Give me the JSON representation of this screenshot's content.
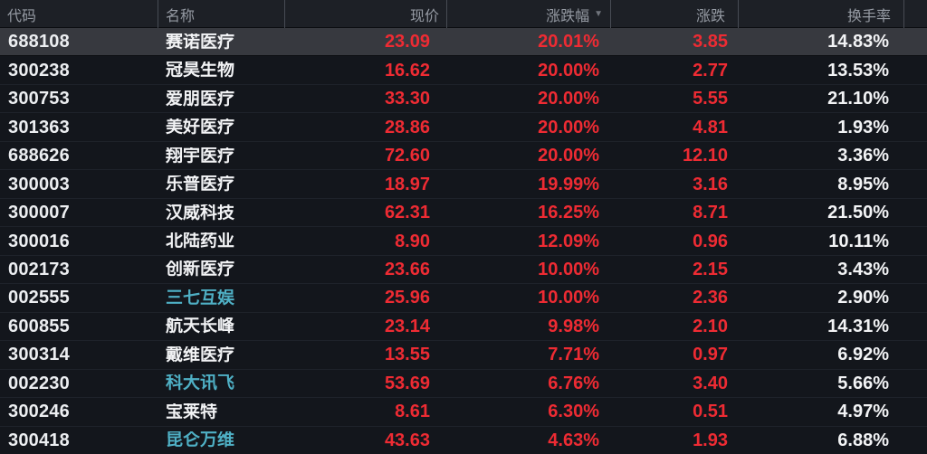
{
  "table": {
    "columns": [
      {
        "label": "代码",
        "align": "left"
      },
      {
        "label": "名称",
        "align": "left"
      },
      {
        "label": "现价",
        "align": "right"
      },
      {
        "label": "涨跌幅",
        "align": "right",
        "sorted": "desc"
      },
      {
        "label": "涨跌",
        "align": "right"
      },
      {
        "label": "换手率",
        "align": "right"
      }
    ],
    "sort_indicator": "▼",
    "rows": [
      {
        "code": "688108",
        "name": "赛诺医疗",
        "price": "23.09",
        "pct": "20.01%",
        "chg": "3.85",
        "turnover": "14.83%",
        "selected": true,
        "name_teal": false
      },
      {
        "code": "300238",
        "name": "冠昊生物",
        "price": "16.62",
        "pct": "20.00%",
        "chg": "2.77",
        "turnover": "13.53%",
        "selected": false,
        "name_teal": false
      },
      {
        "code": "300753",
        "name": "爱朋医疗",
        "price": "33.30",
        "pct": "20.00%",
        "chg": "5.55",
        "turnover": "21.10%",
        "selected": false,
        "name_teal": false
      },
      {
        "code": "301363",
        "name": "美好医疗",
        "price": "28.86",
        "pct": "20.00%",
        "chg": "4.81",
        "turnover": "1.93%",
        "selected": false,
        "name_teal": false
      },
      {
        "code": "688626",
        "name": "翔宇医疗",
        "price": "72.60",
        "pct": "20.00%",
        "chg": "12.10",
        "turnover": "3.36%",
        "selected": false,
        "name_teal": false
      },
      {
        "code": "300003",
        "name": "乐普医疗",
        "price": "18.97",
        "pct": "19.99%",
        "chg": "3.16",
        "turnover": "8.95%",
        "selected": false,
        "name_teal": false
      },
      {
        "code": "300007",
        "name": "汉威科技",
        "price": "62.31",
        "pct": "16.25%",
        "chg": "8.71",
        "turnover": "21.50%",
        "selected": false,
        "name_teal": false
      },
      {
        "code": "300016",
        "name": "北陆药业",
        "price": "8.90",
        "pct": "12.09%",
        "chg": "0.96",
        "turnover": "10.11%",
        "selected": false,
        "name_teal": false
      },
      {
        "code": "002173",
        "name": "创新医疗",
        "price": "23.66",
        "pct": "10.00%",
        "chg": "2.15",
        "turnover": "3.43%",
        "selected": false,
        "name_teal": false
      },
      {
        "code": "002555",
        "name": "三七互娱",
        "price": "25.96",
        "pct": "10.00%",
        "chg": "2.36",
        "turnover": "2.90%",
        "selected": false,
        "name_teal": true
      },
      {
        "code": "600855",
        "name": "航天长峰",
        "price": "23.14",
        "pct": "9.98%",
        "chg": "2.10",
        "turnover": "14.31%",
        "selected": false,
        "name_teal": false
      },
      {
        "code": "300314",
        "name": "戴维医疗",
        "price": "13.55",
        "pct": "7.71%",
        "chg": "0.97",
        "turnover": "6.92%",
        "selected": false,
        "name_teal": false
      },
      {
        "code": "002230",
        "name": "科大讯飞",
        "price": "53.69",
        "pct": "6.76%",
        "chg": "3.40",
        "turnover": "5.66%",
        "selected": false,
        "name_teal": true
      },
      {
        "code": "300246",
        "name": "宝莱特",
        "price": "8.61",
        "pct": "6.30%",
        "chg": "0.51",
        "turnover": "4.97%",
        "selected": false,
        "name_teal": false
      },
      {
        "code": "300418",
        "name": "昆仑万维",
        "price": "43.63",
        "pct": "4.63%",
        "chg": "1.93",
        "turnover": "6.88%",
        "selected": false,
        "name_teal": true
      }
    ]
  },
  "colors": {
    "background": "#13161c",
    "header_background": "#1d2026",
    "selected_row_background": "#37393f",
    "up_red": "#ee2b33",
    "neutral_white": "#f2f3f5",
    "linked_name_teal": "#4fb0c5",
    "header_text": "#959aa3"
  }
}
